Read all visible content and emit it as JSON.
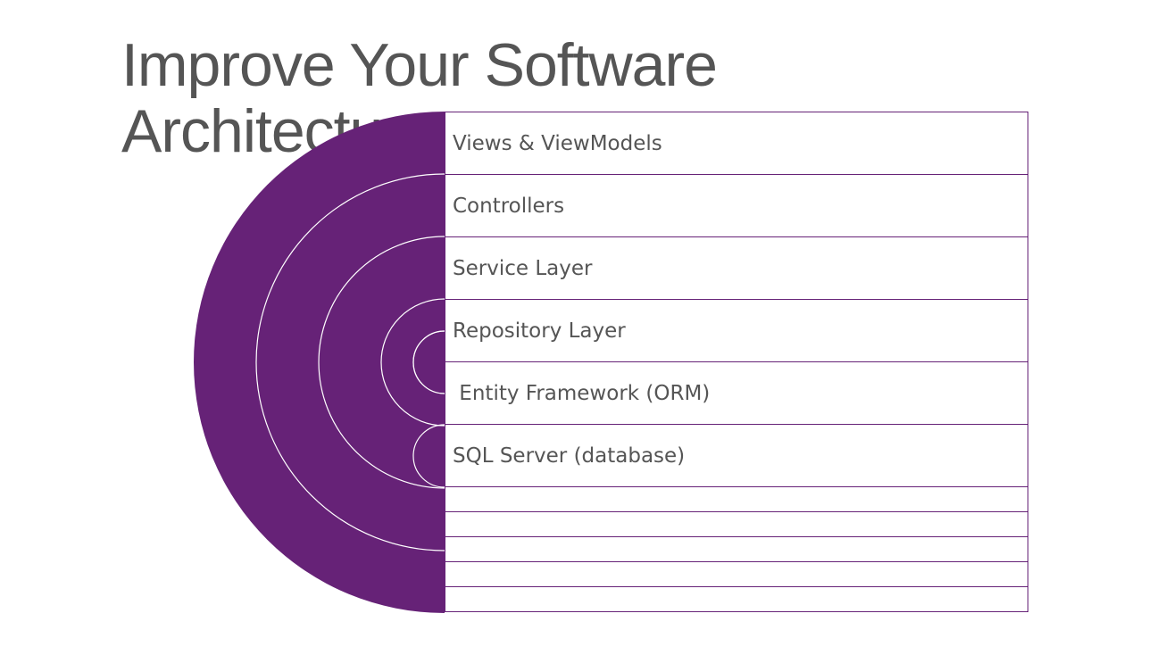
{
  "slide": {
    "title": "Improve Your Software Architecture"
  },
  "diagram": {
    "accent_color": "#662277",
    "layers": [
      {
        "label": "Views & ViewModels"
      },
      {
        "label": "Controllers"
      },
      {
        "label": "Service Layer"
      },
      {
        "label": "Repository Layer"
      },
      {
        "label": " Entity Framework (ORM)"
      },
      {
        "label": "SQL Server (database)"
      },
      {
        "label": ""
      },
      {
        "label": ""
      },
      {
        "label": ""
      },
      {
        "label": ""
      },
      {
        "label": ""
      }
    ]
  }
}
